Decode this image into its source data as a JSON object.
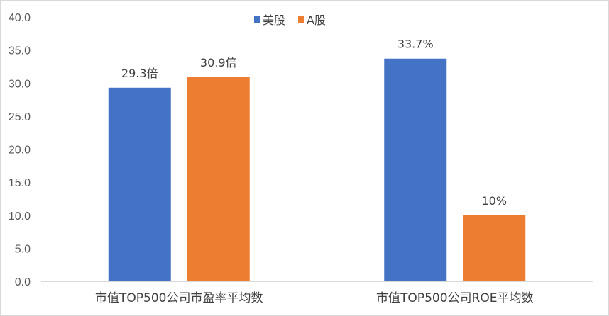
{
  "chart_data": {
    "type": "bar",
    "categories": [
      "市值TOP500公司市盈率平均数",
      "市值TOP500公司ROE平均数"
    ],
    "series": [
      {
        "name": "美股",
        "values": [
          29.3,
          33.7
        ],
        "labels": [
          "29.3倍",
          "33.7%"
        ],
        "color": "#4472C4"
      },
      {
        "name": "A股",
        "values": [
          30.9,
          10.0
        ],
        "labels": [
          "30.9倍",
          "10%"
        ],
        "color": "#ED7D31"
      }
    ],
    "ylim": [
      0,
      40
    ],
    "yticks": [
      "0.0",
      "5.0",
      "10.0",
      "15.0",
      "20.0",
      "25.0",
      "30.0",
      "35.0",
      "40.0"
    ],
    "legend_position": "top-center",
    "grid": false
  }
}
